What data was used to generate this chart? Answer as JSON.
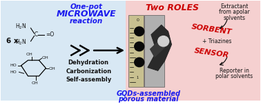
{
  "bg_left_color": "#d8e8f4",
  "bg_right_color": "#f5d0d0",
  "title_left_line1": "One-pot",
  "title_left_line2": "MICROWAVE",
  "title_left_line3": "reaction",
  "title_right": "Two ROLES",
  "label_gqds_line1": "GQDs-assembled",
  "label_gqds_line2": "porous material",
  "steps_line1": "Dehydration",
  "steps_line2": "Carbonization",
  "steps_line3": "Self-assembly",
  "label_6x": "6 x",
  "sorbent_label": "SORBENT",
  "sensor_label": "SENSOR",
  "text_extractant_1": "Extractant",
  "text_extractant_2": "from apolar",
  "text_extractant_3": "solvents",
  "text_triazines": "+ Triazines",
  "text_reporter_1": "Reporter in",
  "text_reporter_2": "polar solvents",
  "blue_color": "#1a1aee",
  "red_color": "#cc0000",
  "black_color": "#111111",
  "figsize": [
    3.78,
    1.52
  ],
  "dpi": 100
}
